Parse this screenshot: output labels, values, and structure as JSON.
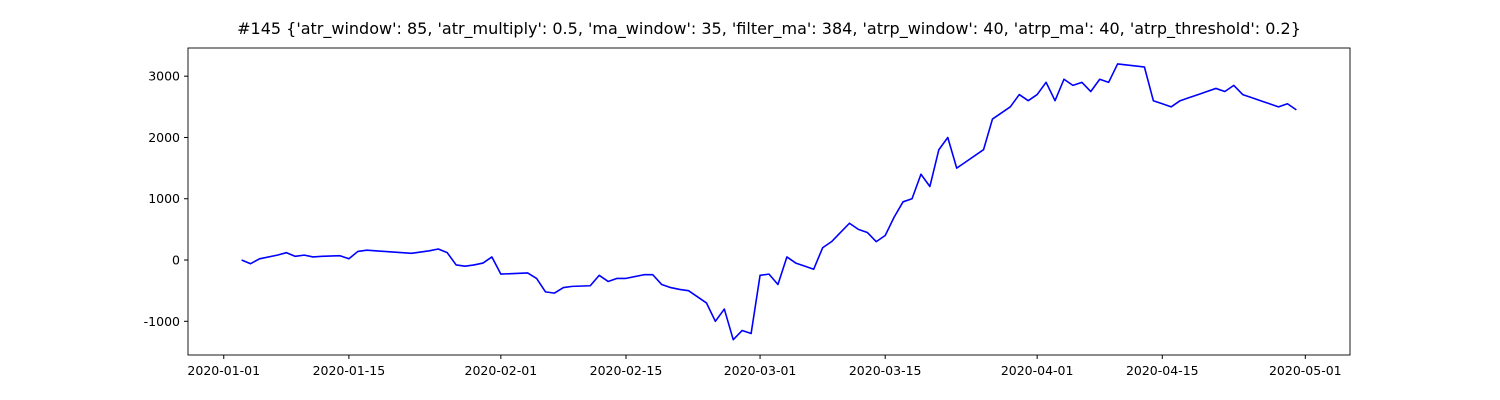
{
  "chart_data": {
    "type": "line",
    "title": "#145 {'atr_window': 85, 'atr_multiply': 0.5, 'ma_window': 35, 'filter_ma': 384, 'atrp_window': 40, 'atrp_ma': 40, 'atrp_threshold': 0.2}",
    "x": [
      "2020-01-03",
      "2020-01-04",
      "2020-01-05",
      "2020-01-07",
      "2020-01-08",
      "2020-01-09",
      "2020-01-10",
      "2020-01-11",
      "2020-01-12",
      "2020-01-14",
      "2020-01-15",
      "2020-01-16",
      "2020-01-17",
      "2020-01-18",
      "2020-01-22",
      "2020-01-24",
      "2020-01-25",
      "2020-01-26",
      "2020-01-27",
      "2020-01-28",
      "2020-01-29",
      "2020-01-30",
      "2020-01-31",
      "2020-02-01",
      "2020-02-04",
      "2020-02-05",
      "2020-02-06",
      "2020-02-07",
      "2020-02-08",
      "2020-02-09",
      "2020-02-11",
      "2020-02-12",
      "2020-02-13",
      "2020-02-14",
      "2020-02-15",
      "2020-02-17",
      "2020-02-18",
      "2020-02-19",
      "2020-02-20",
      "2020-02-21",
      "2020-02-22",
      "2020-02-23",
      "2020-02-24",
      "2020-02-25",
      "2020-02-26",
      "2020-02-27",
      "2020-02-28",
      "2020-02-29",
      "2020-03-01",
      "2020-03-02",
      "2020-03-03",
      "2020-03-04",
      "2020-03-05",
      "2020-03-06",
      "2020-03-07",
      "2020-03-08",
      "2020-03-09",
      "2020-03-10",
      "2020-03-11",
      "2020-03-12",
      "2020-03-13",
      "2020-03-14",
      "2020-03-15",
      "2020-03-16",
      "2020-03-17",
      "2020-03-18",
      "2020-03-19",
      "2020-03-20",
      "2020-03-21",
      "2020-03-22",
      "2020-03-23",
      "2020-03-24",
      "2020-03-26",
      "2020-03-27",
      "2020-03-28",
      "2020-03-29",
      "2020-03-30",
      "2020-03-31",
      "2020-04-01",
      "2020-04-02",
      "2020-04-03",
      "2020-04-04",
      "2020-04-05",
      "2020-04-06",
      "2020-04-07",
      "2020-04-08",
      "2020-04-09",
      "2020-04-10",
      "2020-04-13",
      "2020-04-14",
      "2020-04-15",
      "2020-04-16",
      "2020-04-17",
      "2020-04-18",
      "2020-04-19",
      "2020-04-20",
      "2020-04-21",
      "2020-04-22",
      "2020-04-23",
      "2020-04-24",
      "2020-04-25",
      "2020-04-26",
      "2020-04-27",
      "2020-04-28",
      "2020-04-29",
      "2020-04-30"
    ],
    "series": [
      {
        "color": "#0000ff",
        "values": [
          0,
          -60,
          20,
          80,
          120,
          60,
          80,
          50,
          60,
          70,
          20,
          140,
          160,
          150,
          110,
          150,
          180,
          120,
          -80,
          -100,
          -80,
          -50,
          50,
          -230,
          -210,
          -300,
          -520,
          -540,
          -450,
          -430,
          -420,
          -250,
          -350,
          -300,
          -300,
          -240,
          -240,
          -400,
          -450,
          -480,
          -500,
          -600,
          -700,
          -1000,
          -800,
          -1300,
          -1150,
          -1200,
          -250,
          -230,
          -400,
          50,
          -50,
          -100,
          -150,
          200,
          300,
          450,
          600,
          500,
          450,
          300,
          400,
          700,
          950,
          1000,
          1400,
          1200,
          1800,
          2000,
          1500,
          1600,
          1800,
          2300,
          2400,
          2500,
          2700,
          2600,
          2700,
          2900,
          2600,
          2950,
          2850,
          2900,
          2750,
          2950,
          2900,
          3200,
          3150,
          2600,
          2550,
          2500,
          2600,
          2650,
          2700,
          2750,
          2800,
          2750,
          2850,
          2700,
          2650,
          2600,
          2550,
          2500,
          2550,
          2450
        ]
      }
    ],
    "xlim": [
      "2019-12-28",
      "2020-05-06"
    ],
    "xticks": [
      "2020-01-01",
      "2020-01-15",
      "2020-02-01",
      "2020-02-15",
      "2020-03-01",
      "2020-03-15",
      "2020-04-01",
      "2020-04-15",
      "2020-05-01"
    ],
    "ylim": [
      -1550,
      3460
    ],
    "yticks": [
      -1000,
      0,
      1000,
      2000,
      3000
    ],
    "grid": false
  }
}
